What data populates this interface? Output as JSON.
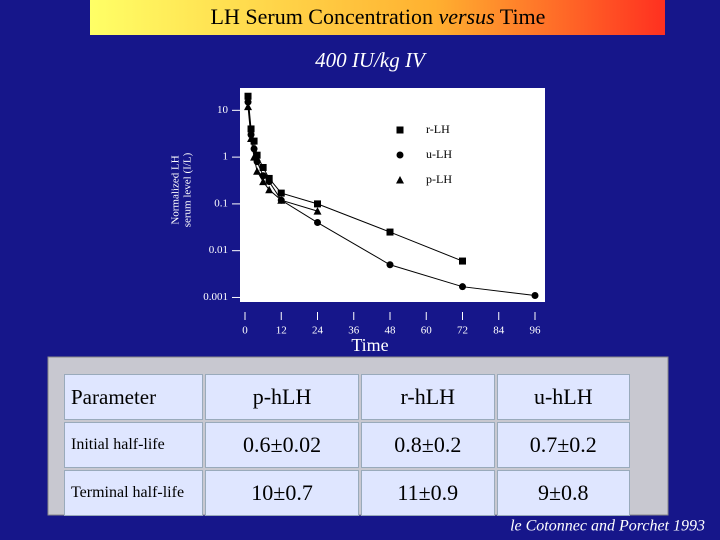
{
  "title_parts": [
    "LH Serum Concentration ",
    "versus",
    " Time"
  ],
  "chart_data": {
    "type": "line",
    "subtitle": "400 IU/kg IV",
    "xlabel": "Time",
    "ylabel": [
      "Normalized LH",
      "serum level (I/L)"
    ],
    "xlim": [
      0,
      100
    ],
    "xticks": [
      0,
      12,
      24,
      36,
      48,
      60,
      72,
      84,
      96
    ],
    "ylim": [
      0.0008,
      30
    ],
    "yticks": [
      10,
      1,
      0.1,
      0.01,
      0.001
    ],
    "log_y": true,
    "legend": "upper right",
    "series": [
      {
        "name": "r-LH",
        "marker": "square",
        "color": "#000000",
        "x": [
          1,
          2,
          3,
          4,
          6,
          8,
          12,
          24,
          48,
          72
        ],
        "values": [
          20,
          4,
          2.2,
          1.1,
          0.6,
          0.35,
          0.17,
          0.1,
          0.025,
          0.006
        ]
      },
      {
        "name": "u-LH",
        "marker": "circle",
        "color": "#000000",
        "x": [
          1,
          2,
          3,
          4,
          6,
          8,
          12,
          24,
          48,
          72,
          96
        ],
        "values": [
          15,
          3,
          1.5,
          0.8,
          0.4,
          0.3,
          0.12,
          0.04,
          0.005,
          0.0017,
          0.0011
        ]
      },
      {
        "name": "p-LH",
        "marker": "triangle",
        "color": "#000000",
        "x": [
          1,
          2,
          3,
          4,
          6,
          8,
          12,
          24
        ],
        "values": [
          12,
          2.5,
          1,
          0.5,
          0.3,
          0.2,
          0.12,
          0.07
        ]
      }
    ]
  },
  "table": {
    "header": [
      "Parameter",
      "p-hLH",
      "r-hLH",
      "u-hLH"
    ],
    "rows": [
      [
        "Initial half-life",
        "0.6±0.02",
        "0.8±0.2",
        "0.7±0.2"
      ],
      [
        "Terminal half-life",
        "10±0.7",
        "11±0.9",
        "9±0.8"
      ]
    ]
  },
  "citation": "le Cotonnec and Porchet 1993"
}
